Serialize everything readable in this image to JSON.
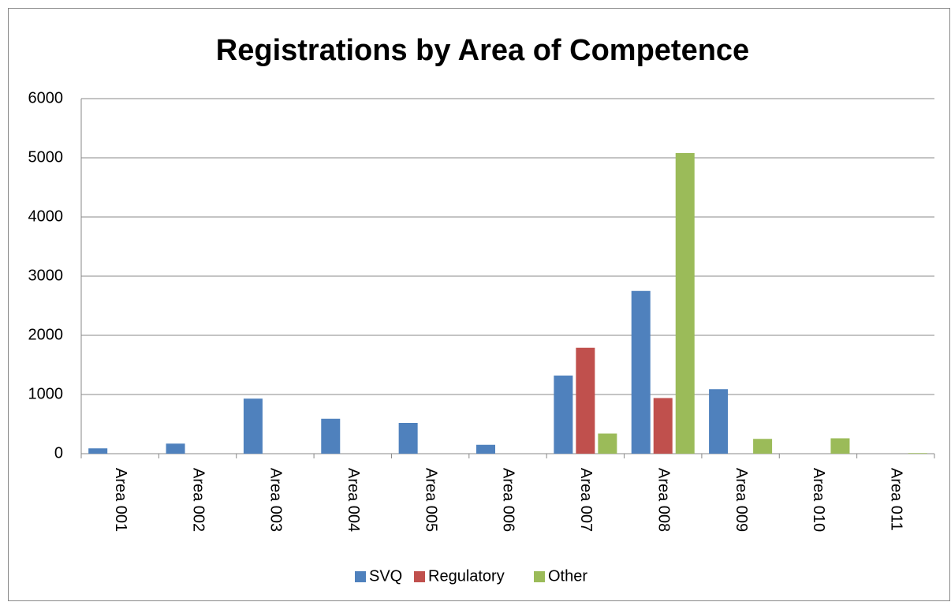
{
  "chart_data": {
    "type": "bar",
    "title": "Registrations by Area of Competence",
    "categories": [
      "Area 001",
      "Area 002",
      "Area 003",
      "Area 004",
      "Area 005",
      "Area 006",
      "Area 007",
      "Area 008",
      "Area 009",
      "Area 010",
      "Area 011"
    ],
    "series": [
      {
        "name": "SVQ",
        "color": "#4f81bd",
        "values": [
          90,
          170,
          930,
          590,
          520,
          150,
          1320,
          2750,
          1090,
          0,
          0
        ]
      },
      {
        "name": "Regulatory",
        "color": "#c0504d",
        "values": [
          0,
          0,
          0,
          0,
          0,
          0,
          1790,
          940,
          0,
          0,
          0
        ]
      },
      {
        "name": "Other",
        "color": "#9bbb59",
        "values": [
          0,
          0,
          0,
          0,
          0,
          0,
          340,
          5080,
          250,
          260,
          10
        ]
      }
    ],
    "ylim": [
      0,
      6000
    ],
    "yticks": [
      0,
      1000,
      2000,
      3000,
      4000,
      5000,
      6000
    ],
    "grid": true,
    "legend": "bottom"
  }
}
